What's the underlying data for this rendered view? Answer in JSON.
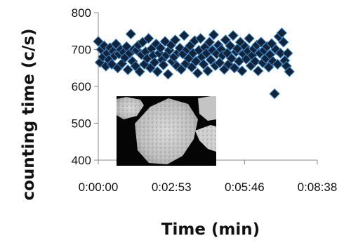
{
  "chart_data": {
    "type": "scatter",
    "title": "",
    "xlabel": "Time (min)",
    "ylabel": "counting time (c/s)",
    "xlim": [
      "0:00:00",
      "0:08:38"
    ],
    "x_ticks": [
      "0:00:00",
      "0:02:53",
      "0:05:46",
      "0:08:38"
    ],
    "ylim": [
      400,
      800
    ],
    "y_ticks": [
      400,
      500,
      600,
      700,
      800
    ],
    "grid": false,
    "legend": "none",
    "marker": "diamond",
    "colors": {
      "marker_fill": "#12243c",
      "marker_edge": "#3f86c4",
      "axis": "#8a8a8a"
    },
    "inset_image": "particle-micrograph",
    "series": [
      {
        "x": [
          "0:00:00",
          "0:00:04",
          "0:00:07",
          "0:00:11",
          "0:00:14",
          "0:00:18",
          "0:00:21",
          "0:00:25",
          "0:00:28",
          "0:00:32",
          "0:00:35",
          "0:00:39",
          "0:00:42",
          "0:00:46",
          "0:00:49",
          "0:00:53",
          "0:00:56",
          "0:01:00",
          "0:01:03",
          "0:01:07",
          "0:01:10",
          "0:01:14",
          "0:01:17",
          "0:01:21",
          "0:01:24",
          "0:01:28",
          "0:01:31",
          "0:01:35",
          "0:01:38",
          "0:01:42",
          "0:01:45",
          "0:01:49",
          "0:01:52",
          "0:01:56",
          "0:01:59",
          "0:02:03",
          "0:02:06",
          "0:02:10",
          "0:02:13",
          "0:02:17",
          "0:02:20",
          "0:02:24",
          "0:02:27",
          "0:02:31",
          "0:02:34",
          "0:02:38",
          "0:02:41",
          "0:02:45",
          "0:02:48",
          "0:02:52",
          "0:02:55",
          "0:02:59",
          "0:03:02",
          "0:03:06",
          "0:03:09",
          "0:03:13",
          "0:03:16",
          "0:03:20",
          "0:03:23",
          "0:03:27",
          "0:03:30",
          "0:03:34",
          "0:03:37",
          "0:03:41",
          "0:03:44",
          "0:03:48",
          "0:03:51",
          "0:03:55",
          "0:03:58",
          "0:04:02",
          "0:04:05",
          "0:04:09",
          "0:04:12",
          "0:04:16",
          "0:04:19",
          "0:04:23",
          "0:04:26",
          "0:04:30",
          "0:04:33",
          "0:04:37",
          "0:04:40",
          "0:04:44",
          "0:04:47",
          "0:04:51",
          "0:04:54",
          "0:04:58",
          "0:05:01",
          "0:05:05",
          "0:05:08",
          "0:05:12",
          "0:05:15",
          "0:05:19",
          "0:05:22",
          "0:05:26",
          "0:05:29",
          "0:05:33",
          "0:05:36",
          "0:05:40",
          "0:05:43",
          "0:05:47",
          "0:05:50",
          "0:05:54",
          "0:05:57",
          "0:06:01",
          "0:06:04",
          "0:06:08",
          "0:06:11",
          "0:06:15",
          "0:06:18",
          "0:06:22",
          "0:06:25",
          "0:06:29",
          "0:06:32",
          "0:06:36",
          "0:06:39",
          "0:06:43",
          "0:06:46",
          "0:06:50",
          "0:06:53",
          "0:06:57",
          "0:07:00",
          "0:07:04",
          "0:07:07",
          "0:07:11",
          "0:07:14",
          "0:07:18",
          "0:07:21",
          "0:07:25",
          "0:07:28",
          "0:07:32"
        ],
        "y": [
          722,
          665,
          700,
          680,
          710,
          655,
          690,
          672,
          705,
          660,
          695,
          683,
          715,
          650,
          688,
          700,
          662,
          692,
          678,
          708,
          645,
          690,
          742,
          668,
          700,
          655,
          698,
          712,
          640,
          686,
          720,
          660,
          694,
          676,
          730,
          650,
          702,
          684,
          665,
          715,
          640,
          690,
          704,
          672,
          658,
          722,
          685,
          633,
          698,
          712,
          668,
          680,
          726,
          655,
          692,
          704,
          646,
          688,
          738,
          662,
          700,
          676,
          710,
          652,
          690,
          724,
          668,
          636,
          698,
          730,
          680,
          660,
          706,
          690,
          642,
          720,
          672,
          698,
          740,
          656,
          688,
          712,
          664,
          700,
          684,
          646,
          726,
          690,
          660,
          710,
          676,
          738,
          650,
          694,
          702,
          668,
          720,
          642,
          688,
          708,
          674,
          696,
          730,
          656,
          684,
          702,
          668,
          712,
          642,
          690,
          720,
          664,
          698,
          676,
          708,
          652,
          686,
          716,
          668,
          580,
          700,
          660,
          735,
          690,
          745,
          720,
          670,
          655,
          690,
          640
        ]
      }
    ]
  }
}
